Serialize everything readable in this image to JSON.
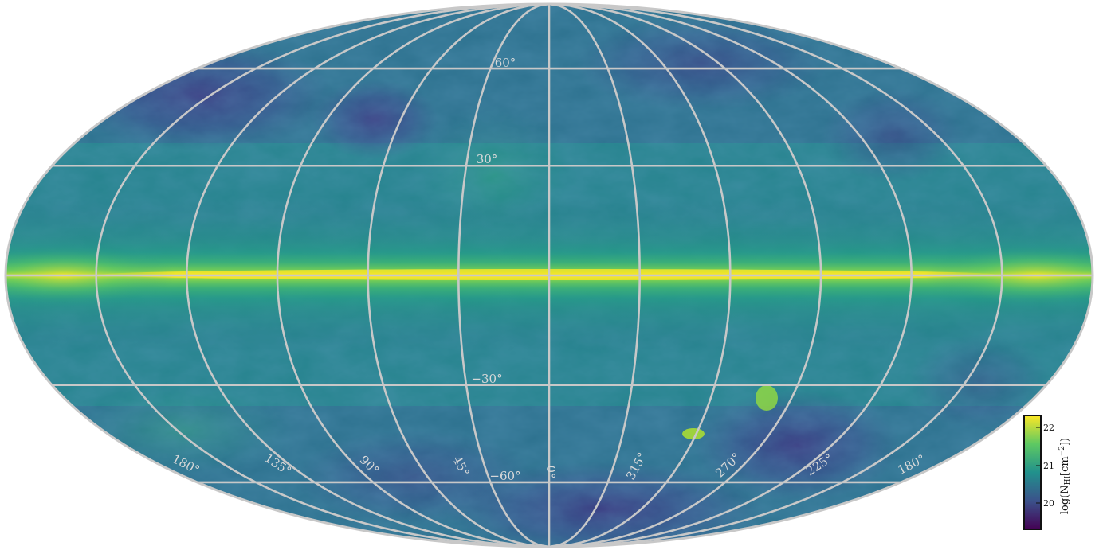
{
  "map": {
    "projection": "mollweide",
    "grid": true,
    "latitude_labels": [
      "60°",
      "30°",
      "−30°",
      "−60°"
    ],
    "longitude_labels": [
      "180°",
      "135°",
      "90°",
      "45°",
      "0°",
      "315°",
      "270°",
      "225°",
      "180°"
    ]
  },
  "colorbar": {
    "label": "log(N",
    "label_sub": "HI",
    "label_rest": "[cm",
    "label_sup": "−2",
    "label_end": "])",
    "ticks": [
      "22",
      "21",
      "20"
    ],
    "colors": [
      "#440154",
      "#3b528b",
      "#21918c",
      "#5ec962",
      "#fde725"
    ]
  }
}
